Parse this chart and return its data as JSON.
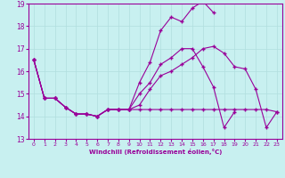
{
  "xlabel": "Windchill (Refroidissement éolien,°C)",
  "xlim": [
    -0.5,
    23.5
  ],
  "ylim": [
    13,
    19
  ],
  "yticks": [
    13,
    14,
    15,
    16,
    17,
    18,
    19
  ],
  "xticks": [
    0,
    1,
    2,
    3,
    4,
    5,
    6,
    7,
    8,
    9,
    10,
    11,
    12,
    13,
    14,
    15,
    16,
    17,
    18,
    19,
    20,
    21,
    22,
    23
  ],
  "background_color": "#c8f0f0",
  "grid_color": "#b0dede",
  "line_color": "#990099",
  "line1_y": [
    16.5,
    14.8,
    14.8,
    14.4,
    14.1,
    14.1,
    14.0,
    14.3,
    14.3,
    14.3,
    14.3,
    14.3,
    14.3,
    14.3,
    14.3,
    14.3,
    14.3,
    14.3,
    14.3,
    14.3,
    14.3,
    14.3,
    14.3,
    14.2
  ],
  "line2_y": [
    16.5,
    14.8,
    14.8,
    14.4,
    14.1,
    14.1,
    14.0,
    14.3,
    14.3,
    14.3,
    14.5,
    15.2,
    15.8,
    16.0,
    16.3,
    16.6,
    17.0,
    17.1,
    16.8,
    16.2,
    16.1,
    15.2,
    13.5,
    14.2
  ],
  "line3_y": [
    16.5,
    14.8,
    14.8,
    14.4,
    14.1,
    14.1,
    14.0,
    14.3,
    14.3,
    14.3,
    15.0,
    15.5,
    16.3,
    16.6,
    17.0,
    17.0,
    16.2,
    15.3,
    13.5,
    14.2,
    null,
    null,
    null,
    null
  ],
  "line4_y": [
    16.5,
    14.8,
    14.8,
    14.4,
    14.1,
    14.1,
    14.0,
    14.3,
    14.3,
    14.3,
    15.5,
    16.4,
    17.8,
    18.4,
    18.2,
    18.8,
    19.1,
    18.6,
    null,
    null,
    null,
    null,
    null,
    null
  ]
}
